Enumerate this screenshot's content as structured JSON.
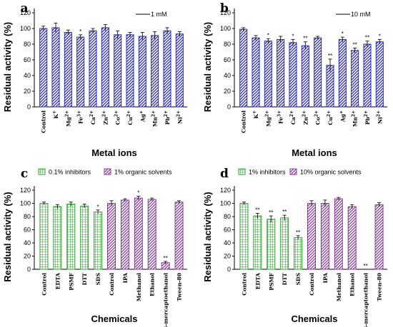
{
  "colors": {
    "blue": "#2a2ab8",
    "green": "#2ea32e",
    "purple": "#8b3a9e",
    "error": "#111111"
  },
  "chart_data": [
    {
      "panel": "a",
      "type": "bar",
      "ylabel": "Residual activity (%)",
      "xlabel": "Metal ions",
      "ylim": [
        0,
        120
      ],
      "yticks": [
        0,
        20,
        40,
        60,
        80,
        100,
        120
      ],
      "scale_note": "1 mM",
      "categories": [
        "Control",
        "K+",
        "Mg2+",
        "Fe3+",
        "Ca2+",
        "Zn2+",
        "Co2+",
        "Cu2+",
        "Ag+",
        "Mn2+",
        "Pb2+",
        "Ni2+"
      ],
      "series": [
        {
          "pattern": "blue",
          "values": [
            100,
            101,
            95,
            89,
            97,
            101,
            92,
            92,
            90,
            91,
            97,
            93
          ],
          "errors": [
            3,
            6,
            3,
            3,
            3,
            4,
            5,
            3,
            5,
            5,
            4,
            3
          ],
          "sig": [
            "",
            "",
            "",
            "*",
            "",
            "",
            "",
            "",
            "",
            "",
            "",
            ""
          ]
        }
      ]
    },
    {
      "panel": "b",
      "type": "bar",
      "ylabel": "Residual activity (%)",
      "xlabel": "Metal ions",
      "ylim": [
        0,
        120
      ],
      "yticks": [
        0,
        20,
        40,
        60,
        80,
        100,
        120
      ],
      "scale_note": "10 mM",
      "categories": [
        "Control",
        "K+",
        "Mg2+",
        "Fe3+",
        "Ca2+",
        "Zn2+",
        "Co2+",
        "Cu2+",
        "Ag+",
        "Mn2+",
        "Pb2+",
        "Ni2+"
      ],
      "series": [
        {
          "pattern": "blue",
          "values": [
            99,
            88,
            84,
            86,
            82,
            78,
            88,
            53,
            86,
            72,
            80,
            83
          ],
          "errors": [
            2,
            3,
            3,
            4,
            4,
            5,
            2,
            8,
            3,
            3,
            4,
            3
          ],
          "sig": [
            "",
            "",
            "*",
            "",
            "*",
            "**",
            "",
            "**",
            "*",
            "**",
            "**",
            "*"
          ]
        }
      ]
    },
    {
      "panel": "c",
      "type": "bar",
      "ylabel": "Residual activity (%)",
      "xlabel": "Chemicals",
      "ylim": [
        0,
        120
      ],
      "yticks": [
        0,
        20,
        40,
        60,
        80,
        100,
        120
      ],
      "legend": [
        "0.1% inhibitors",
        "1% organic solvents"
      ],
      "categories": [
        "Control",
        "EDTA",
        "PSMF",
        "DTT",
        "SDS",
        "Control",
        "IPA",
        "Methanol",
        "Ethanol",
        "β-mercaptoethanol",
        "Tween-80"
      ],
      "series": [
        {
          "pattern": "green",
          "values": [
            100,
            95,
            99,
            96,
            87,
            null,
            null,
            null,
            null,
            null,
            null
          ],
          "errors": [
            2,
            3,
            3,
            3,
            3,
            null,
            null,
            null,
            null,
            null,
            null
          ],
          "sig": [
            "",
            "",
            "",
            "",
            "*",
            "",
            "",
            "",
            "",
            "",
            ""
          ]
        },
        {
          "pattern": "purple",
          "values": [
            null,
            null,
            null,
            null,
            null,
            100,
            105,
            108,
            106,
            10,
            102
          ],
          "errors": [
            null,
            null,
            null,
            null,
            null,
            4,
            2,
            3,
            2,
            2,
            2
          ],
          "sig": [
            "",
            "",
            "",
            "",
            "",
            "",
            "",
            "*",
            "",
            "**",
            ""
          ]
        }
      ]
    },
    {
      "panel": "d",
      "type": "bar",
      "ylabel": "Residual activity (%)",
      "xlabel": "Chemicals",
      "ylim": [
        0,
        120
      ],
      "yticks": [
        0,
        20,
        40,
        60,
        80,
        100,
        120
      ],
      "legend": [
        "1% inhibitors",
        "10% organic solvents"
      ],
      "categories": [
        "Control",
        "EDTA",
        "PSMF",
        "DTT",
        "SDS",
        "Control",
        "IPA",
        "Methanol",
        "Ethanol",
        "β-mercaptoethanol",
        "Tween-80"
      ],
      "series": [
        {
          "pattern": "green",
          "values": [
            100,
            81,
            76,
            78,
            48,
            null,
            null,
            null,
            null,
            null,
            null
          ],
          "errors": [
            2,
            4,
            5,
            4,
            3,
            null,
            null,
            null,
            null,
            null,
            null
          ],
          "sig": [
            "",
            "**",
            "**",
            "**",
            "**",
            "",
            "",
            "",
            "",
            "",
            ""
          ]
        },
        {
          "pattern": "purple",
          "values": [
            null,
            null,
            null,
            null,
            null,
            100,
            100,
            107,
            95,
            0,
            98
          ],
          "errors": [
            null,
            null,
            null,
            null,
            null,
            4,
            5,
            2,
            3,
            0,
            3
          ],
          "sig": [
            "",
            "",
            "",
            "",
            "",
            "",
            "",
            "",
            "",
            "**",
            ""
          ]
        }
      ]
    }
  ]
}
